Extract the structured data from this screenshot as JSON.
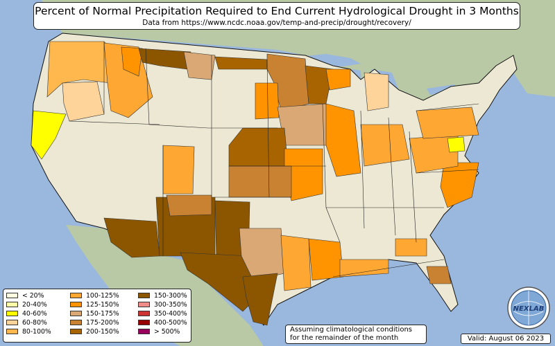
{
  "title": "Percent of Normal Precipitation Required to End Current Hydrological Drought in 3 Months",
  "subtitle": "Data from https://www.ncdc.noaa.gov/temp-and-precip/drought/recovery/",
  "legend": [
    {
      "label": "< 20%",
      "color": "#fffde0"
    },
    {
      "label": "20-40%",
      "color": "#ffffa8"
    },
    {
      "label": "40-60%",
      "color": "#ffff00"
    },
    {
      "label": "60-80%",
      "color": "#ffd49a"
    },
    {
      "label": "80-100%",
      "color": "#ffb84d"
    },
    {
      "label": "100-125%",
      "color": "#ffa733"
    },
    {
      "label": "125-150%",
      "color": "#ff9400"
    },
    {
      "label": "150-175%",
      "color": "#d9a874"
    },
    {
      "label": "175-200%",
      "color": "#c98231"
    },
    {
      "label": "200-150%",
      "color": "#a86400"
    },
    {
      "label": "150-300%",
      "color": "#8c5600"
    },
    {
      "label": "300-350%",
      "color": "#f08c8c"
    },
    {
      "label": "350-400%",
      "color": "#cc3333"
    },
    {
      "label": "400-500%",
      "color": "#990000"
    },
    {
      "label": "> 500%",
      "color": "#99005c"
    }
  ],
  "note": {
    "line1": "Assuming climatological conditions",
    "line2": "for the remainder of the month"
  },
  "valid": "Valid: August 06 2023",
  "logo_text": "NEXLAB",
  "colors": {
    "ocean": "#9ab7de",
    "land_us": "#ece8d3",
    "land_other": "#b9c9a5"
  }
}
